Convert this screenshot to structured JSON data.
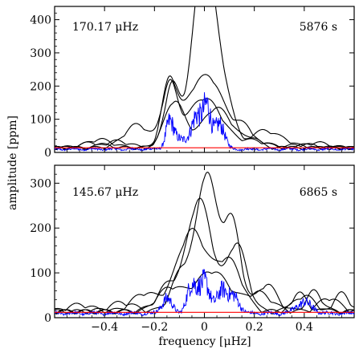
{
  "chart_data": [
    {
      "type": "line",
      "title": "",
      "annotation_left": "170.17 μHz",
      "annotation_right": "5876 s",
      "xlabel": "",
      "ylabel": "amplitude [ppm]",
      "xlim": [
        -0.6,
        0.6
      ],
      "ylim": [
        0,
        440
      ],
      "yticks": [
        0,
        100,
        200,
        300,
        400
      ],
      "grid": false,
      "colors": {
        "black": "#000000",
        "blue": "#0000ff",
        "red": "#ff0000"
      },
      "series": [
        {
          "color": "#000000",
          "peaks": [
            [
              0.015,
              395,
              0.045
            ],
            [
              -0.02,
              245,
              0.04
            ],
            [
              -0.13,
              190,
              0.03
            ],
            [
              0.09,
              90,
              0.035
            ],
            [
              -0.35,
              20,
              0.05
            ],
            [
              0.2,
              25,
              0.05
            ]
          ]
        },
        {
          "color": "#000000",
          "peaks": [
            [
              0.02,
              205,
              0.06
            ],
            [
              -0.14,
              200,
              0.03
            ],
            [
              -0.06,
              70,
              0.04
            ],
            [
              0.16,
              60,
              0.04
            ],
            [
              -0.45,
              15,
              0.05
            ],
            [
              0.45,
              15,
              0.05
            ]
          ]
        },
        {
          "color": "#000000",
          "peaks": [
            [
              0.0,
              150,
              0.07
            ],
            [
              -0.14,
              180,
              0.03
            ],
            [
              -0.27,
              70,
              0.05
            ],
            [
              0.2,
              20,
              0.05
            ],
            [
              0.4,
              10,
              0.05
            ]
          ]
        },
        {
          "color": "#000000",
          "peaks": [
            [
              -0.12,
              140,
              0.04
            ],
            [
              0.05,
              120,
              0.06
            ],
            [
              0.24,
              50,
              0.05
            ],
            [
              0.33,
              15,
              0.04
            ],
            [
              -0.42,
              25,
              0.05
            ]
          ]
        },
        {
          "color": "#0000ff",
          "noisy": true,
          "peaks": [
            [
              0.01,
              145,
              0.015
            ],
            [
              -0.03,
              120,
              0.02
            ],
            [
              0.06,
              95,
              0.02
            ],
            [
              -0.14,
              85,
              0.015
            ],
            [
              -0.1,
              40,
              0.03
            ]
          ]
        }
      ],
      "noise_level": 14
    },
    {
      "type": "line",
      "title": "",
      "annotation_left": "145.67 μHz",
      "annotation_right": "6865 s",
      "xlabel": "frequency [μHz]",
      "ylabel": "",
      "xlim": [
        -0.6,
        0.6
      ],
      "ylim": [
        0,
        340
      ],
      "yticks": [
        0,
        100,
        200,
        300
      ],
      "xticks": [
        -0.4,
        -0.2,
        0.0,
        0.2,
        0.4
      ],
      "xticklabels": [
        "−0.4",
        "−0.2",
        "0",
        "0.2",
        "0.4"
      ],
      "grid": false,
      "series": [
        {
          "color": "#000000",
          "peaks": [
            [
              0.01,
              305,
              0.04
            ],
            [
              0.11,
              200,
              0.035
            ],
            [
              -0.09,
              90,
              0.04
            ],
            [
              0.25,
              60,
              0.04
            ],
            [
              0.44,
              45,
              0.03
            ],
            [
              -0.33,
              20,
              0.05
            ]
          ]
        },
        {
          "color": "#000000",
          "peaks": [
            [
              -0.02,
              250,
              0.05
            ],
            [
              0.13,
              150,
              0.04
            ],
            [
              -0.15,
              55,
              0.04
            ],
            [
              0.38,
              40,
              0.03
            ],
            [
              0.55,
              40,
              0.03
            ]
          ]
        },
        {
          "color": "#000000",
          "peaks": [
            [
              -0.05,
              180,
              0.06
            ],
            [
              0.1,
              110,
              0.05
            ],
            [
              -0.24,
              40,
              0.05
            ],
            [
              0.4,
              35,
              0.04
            ],
            [
              -0.5,
              15,
              0.05
            ]
          ]
        },
        {
          "color": "#000000",
          "peaks": [
            [
              0.03,
              90,
              0.07
            ],
            [
              -0.14,
              50,
              0.05
            ],
            [
              0.22,
              40,
              0.05
            ],
            [
              0.5,
              30,
              0.04
            ]
          ]
        },
        {
          "color": "#0000ff",
          "noisy": true,
          "peaks": [
            [
              0.0,
              85,
              0.02
            ],
            [
              -0.05,
              75,
              0.02
            ],
            [
              0.07,
              65,
              0.02
            ],
            [
              0.12,
              45,
              0.02
            ],
            [
              -0.15,
              40,
              0.02
            ],
            [
              0.4,
              30,
              0.03
            ]
          ]
        }
      ],
      "noise_level": 12
    }
  ]
}
